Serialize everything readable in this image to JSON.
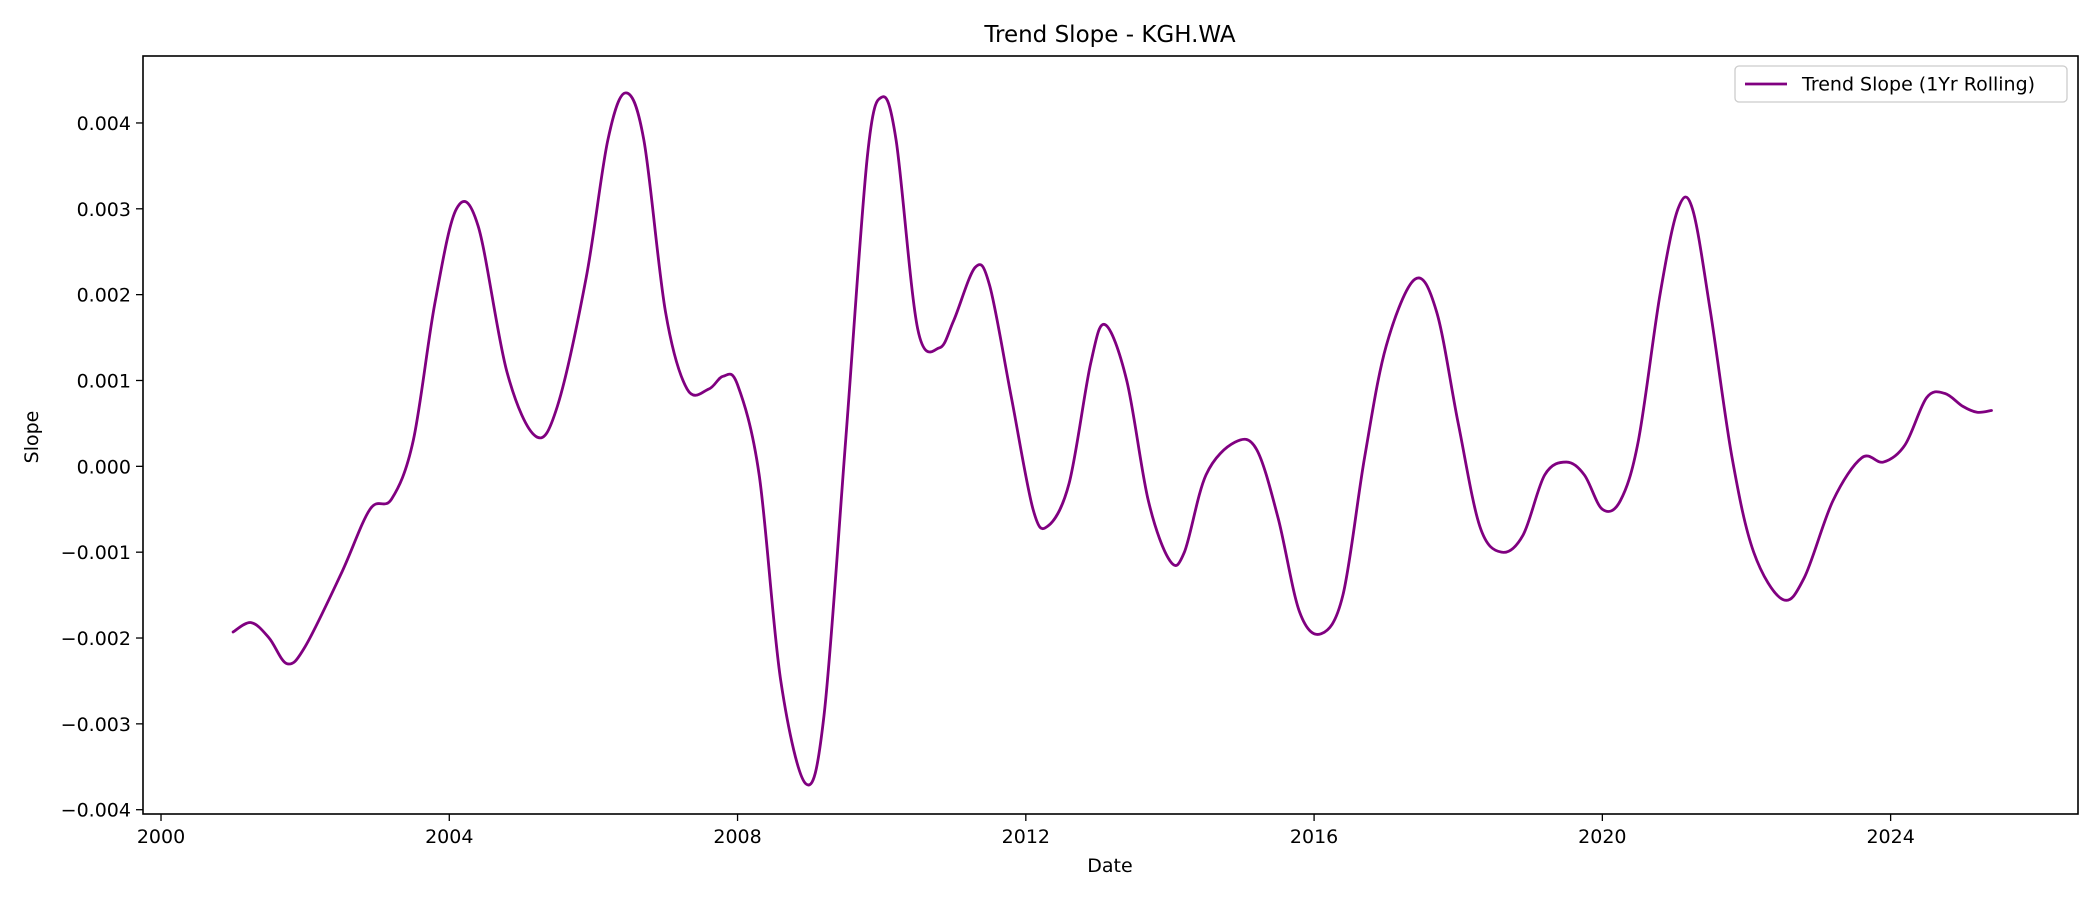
{
  "chart_data": {
    "type": "line",
    "title": "Trend Slope - KGH.WA",
    "xlabel": "Date",
    "ylabel": "Slope",
    "xlim": [
      1999.75,
      2026.6
    ],
    "ylim": [
      -0.00405,
      0.00478
    ],
    "grid": false,
    "legend_placement": "top-right",
    "x_ticks": [
      2000,
      2004,
      2008,
      2012,
      2016,
      2020,
      2024
    ],
    "x_tick_labels": [
      "2000",
      "2004",
      "2008",
      "2012",
      "2016",
      "2020",
      "2024"
    ],
    "y_ticks": [
      -0.004,
      -0.003,
      -0.002,
      -0.001,
      0.0,
      0.001,
      0.002,
      0.003,
      0.004
    ],
    "y_tick_labels": [
      "−0.004",
      "−0.003",
      "−0.002",
      "−0.001",
      "0.000",
      "0.001",
      "0.002",
      "0.003",
      "0.004"
    ],
    "series": [
      {
        "name": "Trend Slope (1Yr Rolling)",
        "color": "#800080",
        "points": [
          [
            2001.0,
            -0.00193
          ],
          [
            2001.25,
            -0.00182
          ],
          [
            2001.5,
            -0.002
          ],
          [
            2001.75,
            -0.0023
          ],
          [
            2002.0,
            -0.0021
          ],
          [
            2002.5,
            -0.00125
          ],
          [
            2002.9,
            -0.0005
          ],
          [
            2003.2,
            -0.00038
          ],
          [
            2003.5,
            0.0003
          ],
          [
            2003.8,
            0.0019
          ],
          [
            2004.1,
            0.003
          ],
          [
            2004.4,
            0.0028
          ],
          [
            2004.8,
            0.0011
          ],
          [
            2005.2,
            0.00035
          ],
          [
            2005.5,
            0.0007
          ],
          [
            2005.9,
            0.0022
          ],
          [
            2006.2,
            0.0038
          ],
          [
            2006.45,
            0.00435
          ],
          [
            2006.7,
            0.0038
          ],
          [
            2007.0,
            0.0018
          ],
          [
            2007.3,
            0.0009
          ],
          [
            2007.6,
            0.0009
          ],
          [
            2007.8,
            0.00105
          ],
          [
            2008.0,
            0.00095
          ],
          [
            2008.3,
            -0.0001
          ],
          [
            2008.6,
            -0.0025
          ],
          [
            2008.95,
            -0.0037
          ],
          [
            2009.2,
            -0.0029
          ],
          [
            2009.5,
            0.0003
          ],
          [
            2009.8,
            0.0036
          ],
          [
            2010.0,
            0.0043
          ],
          [
            2010.2,
            0.0038
          ],
          [
            2010.5,
            0.0016
          ],
          [
            2010.8,
            0.00138
          ],
          [
            2011.0,
            0.0017
          ],
          [
            2011.3,
            0.00232
          ],
          [
            2011.5,
            0.0021
          ],
          [
            2011.8,
            0.0008
          ],
          [
            2012.1,
            -0.0005
          ],
          [
            2012.3,
            -0.0007
          ],
          [
            2012.6,
            -0.0002
          ],
          [
            2012.9,
            0.0012
          ],
          [
            2013.1,
            0.00165
          ],
          [
            2013.4,
            0.001
          ],
          [
            2013.7,
            -0.0004
          ],
          [
            2014.0,
            -0.0011
          ],
          [
            2014.2,
            -0.001
          ],
          [
            2014.5,
            -0.0001
          ],
          [
            2014.9,
            0.00028
          ],
          [
            2015.2,
            0.0002
          ],
          [
            2015.5,
            -0.0006
          ],
          [
            2015.8,
            -0.0017
          ],
          [
            2016.1,
            -0.00195
          ],
          [
            2016.4,
            -0.0015
          ],
          [
            2016.7,
            0.0001
          ],
          [
            2017.0,
            0.0014
          ],
          [
            2017.4,
            0.00218
          ],
          [
            2017.7,
            0.0018
          ],
          [
            2018.0,
            0.0005
          ],
          [
            2018.3,
            -0.0007
          ],
          [
            2018.6,
            -0.001
          ],
          [
            2018.9,
            -0.0008
          ],
          [
            2019.2,
            -0.0001
          ],
          [
            2019.5,
            5e-05
          ],
          [
            2019.75,
            -0.0001
          ],
          [
            2020.0,
            -0.0005
          ],
          [
            2020.25,
            -0.0004
          ],
          [
            2020.5,
            0.0003
          ],
          [
            2020.8,
            0.002
          ],
          [
            2021.05,
            0.003
          ],
          [
            2021.25,
            0.003
          ],
          [
            2021.5,
            0.0018
          ],
          [
            2021.8,
            0.0001
          ],
          [
            2022.1,
            -0.001
          ],
          [
            2022.5,
            -0.00155
          ],
          [
            2022.8,
            -0.0013
          ],
          [
            2023.2,
            -0.0004
          ],
          [
            2023.6,
            0.0001
          ],
          [
            2023.9,
            5e-05
          ],
          [
            2024.2,
            0.00025
          ],
          [
            2024.5,
            0.0008
          ],
          [
            2024.75,
            0.00085
          ],
          [
            2025.0,
            0.0007
          ],
          [
            2025.2,
            0.00063
          ],
          [
            2025.4,
            0.00065
          ]
        ]
      }
    ]
  }
}
